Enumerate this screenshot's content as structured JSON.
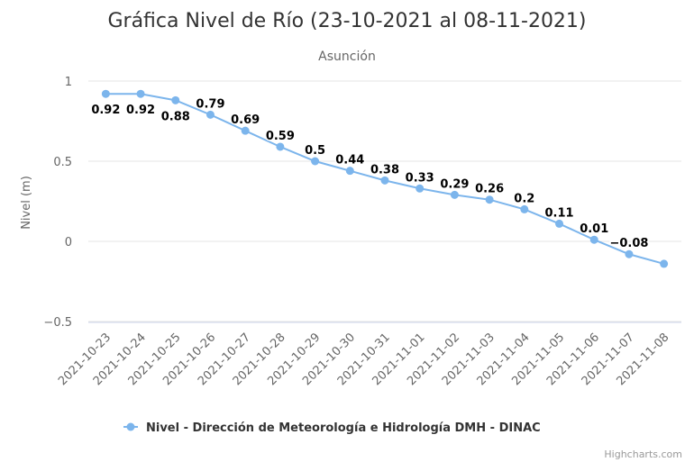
{
  "chart_data": {
    "type": "line",
    "title": "Gráfica Nivel de Río (23-10-2021 al 08-11-2021)",
    "subtitle": "Asunción",
    "ylabel": "Nivel (m)",
    "xlabel": "",
    "ylim": [
      -0.5,
      1
    ],
    "yticks": [
      "1",
      "0.5",
      "0",
      "−0.5"
    ],
    "ytick_values": [
      1,
      0.5,
      0,
      -0.5
    ],
    "grid": true,
    "legend_position": "bottom",
    "categories": [
      "2021-10-23",
      "2021-10-24",
      "2021-10-25",
      "2021-10-26",
      "2021-10-27",
      "2021-10-28",
      "2021-10-29",
      "2021-10-30",
      "2021-10-31",
      "2021-11-01",
      "2021-11-02",
      "2021-11-03",
      "2021-11-04",
      "2021-11-05",
      "2021-11-06",
      "2021-11-07",
      "2021-11-08"
    ],
    "series": [
      {
        "name": "Nivel - Dirección de Meteorología e Hidrología DMH - DINAC",
        "color": "#7cb5ec",
        "values": [
          0.92,
          0.92,
          0.88,
          0.79,
          0.69,
          0.59,
          0.5,
          0.44,
          0.38,
          0.33,
          0.29,
          0.26,
          0.2,
          0.11,
          0.01,
          -0.08,
          -0.14
        ],
        "data_labels": [
          "0.92",
          "0.92",
          "0.88",
          "0.79",
          "0.69",
          "0.59",
          "0.5",
          "0.44",
          "0.38",
          "0.33",
          "0.29",
          "0.26",
          "0.2",
          "0.11",
          "0.01",
          "−0.08",
          ""
        ]
      }
    ],
    "credits": "Highcharts.com"
  }
}
